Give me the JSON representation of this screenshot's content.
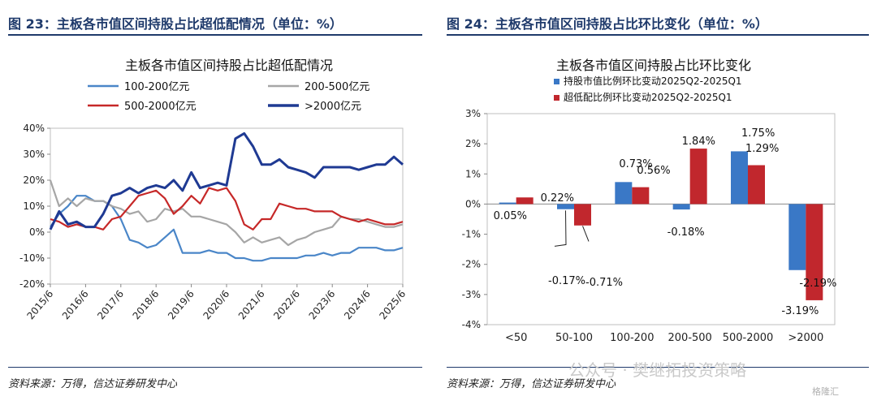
{
  "left": {
    "figure_title": "图 23：主板各市值区间持股占比超低配情况（单位：%）",
    "source": "资料来源：万得，信达证券研发中心"
  },
  "right": {
    "figure_title": "图 24：主板各市值区间持股占比环比变化（单位：%）",
    "source": "资料来源：万得，信达证券研发中心"
  },
  "watermark": {
    "text": "公众号 · 樊继拓投资策略",
    "logo": "格隆汇"
  },
  "chart_data": [
    {
      "type": "line",
      "title": "主板各市值区间持股占比超低配情况",
      "x": [
        "2015/6",
        "2015/9",
        "2015/12",
        "2016/3",
        "2016/6",
        "2016/9",
        "2016/12",
        "2017/3",
        "2017/6",
        "2017/9",
        "2017/12",
        "2018/3",
        "2018/6",
        "2018/9",
        "2018/12",
        "2019/3",
        "2019/6",
        "2019/9",
        "2019/12",
        "2020/3",
        "2020/6",
        "2020/9",
        "2020/12",
        "2021/3",
        "2021/6",
        "2021/9",
        "2021/12",
        "2022/3",
        "2022/6",
        "2022/9",
        "2022/12",
        "2023/3",
        "2023/6",
        "2023/9",
        "2023/12",
        "2024/3",
        "2024/6",
        "2024/9",
        "2024/12",
        "2025/3",
        "2025/6"
      ],
      "xtick_labels": [
        "2015/6",
        "2016/6",
        "2017/6",
        "2018/6",
        "2019/6",
        "2020/6",
        "2021/6",
        "2022/6",
        "2023/6",
        "2024/6",
        "2025/6"
      ],
      "yticks": [
        "40%",
        "30%",
        "20%",
        "10%",
        "0%",
        "-10%",
        "-20%"
      ],
      "ylim": [
        -20,
        40
      ],
      "legend_position": "top",
      "series": [
        {
          "name": "100-200亿元",
          "color": "#4a86c8",
          "values": [
            2,
            7,
            10,
            14,
            14,
            12,
            12,
            10,
            5,
            -3,
            -4,
            -6,
            -5,
            -2,
            1,
            -8,
            -8,
            -8,
            -7,
            -8,
            -8,
            -10,
            -10,
            -11,
            -11,
            -10,
            -10,
            -10,
            -10,
            -9,
            -9,
            -8,
            -9,
            -8,
            -8,
            -6,
            -6,
            -6,
            -7,
            -7,
            -6
          ]
        },
        {
          "name": "200-500亿元",
          "color": "#a6a6a6",
          "values": [
            20,
            10,
            13,
            10,
            13,
            12,
            12,
            10,
            9,
            7,
            8,
            4,
            5,
            9,
            8,
            9,
            6,
            6,
            5,
            4,
            3,
            0,
            -4,
            -2,
            -4,
            -3,
            -2,
            -5,
            -3,
            -2,
            0,
            1,
            2,
            6,
            5,
            5,
            4,
            3,
            2,
            2,
            3
          ]
        },
        {
          "name": "500-2000亿元",
          "color": "#c62828",
          "values": [
            5,
            4,
            2,
            3,
            2,
            2,
            1,
            5,
            6,
            10,
            14,
            15,
            16,
            13,
            7,
            10,
            14,
            11,
            17,
            16,
            17,
            12,
            3,
            1,
            5,
            5,
            11,
            10,
            9,
            9,
            8,
            8,
            8,
            6,
            5,
            4,
            5,
            4,
            3,
            3,
            4
          ]
        },
        {
          "name": ">2000亿元",
          "color": "#1f3a93",
          "values": [
            1,
            8,
            3,
            4,
            2,
            2,
            7,
            14,
            15,
            17,
            15,
            17,
            18,
            17,
            20,
            16,
            23,
            17,
            18,
            19,
            18,
            36,
            38,
            33,
            26,
            26,
            28,
            25,
            24,
            23,
            21,
            25,
            25,
            25,
            25,
            24,
            25,
            26,
            26,
            29,
            26
          ]
        }
      ]
    },
    {
      "type": "bar",
      "title": "主板各市值区间持股占比环比变化",
      "categories": [
        "<50",
        "50-100",
        "100-200",
        "200-500",
        "500-2000",
        ">2000"
      ],
      "yticks": [
        "3%",
        "2%",
        "1%",
        "0%",
        "-1%",
        "-2%",
        "-3%",
        "-4%"
      ],
      "ylim": [
        -4,
        3
      ],
      "legend_position": "top",
      "series": [
        {
          "name": "持股市值比例环比变动2025Q2-2025Q1",
          "color": "#3a78c6",
          "values": [
            0.05,
            -0.17,
            0.73,
            -0.18,
            1.75,
            -2.19
          ],
          "labels": [
            "0.05%",
            "-0.17%",
            "0.73%",
            "-0.18%",
            "1.75%",
            "-2.19%"
          ]
        },
        {
          "name": "超低配比例环比变动2025Q2-2025Q1",
          "color": "#c1272d",
          "values": [
            0.22,
            -0.71,
            0.56,
            1.84,
            1.29,
            -3.19
          ],
          "labels": [
            "0.22%",
            "-0.71%",
            "0.56%",
            "1.84%",
            "1.29%",
            "-3.19%"
          ]
        }
      ]
    }
  ]
}
